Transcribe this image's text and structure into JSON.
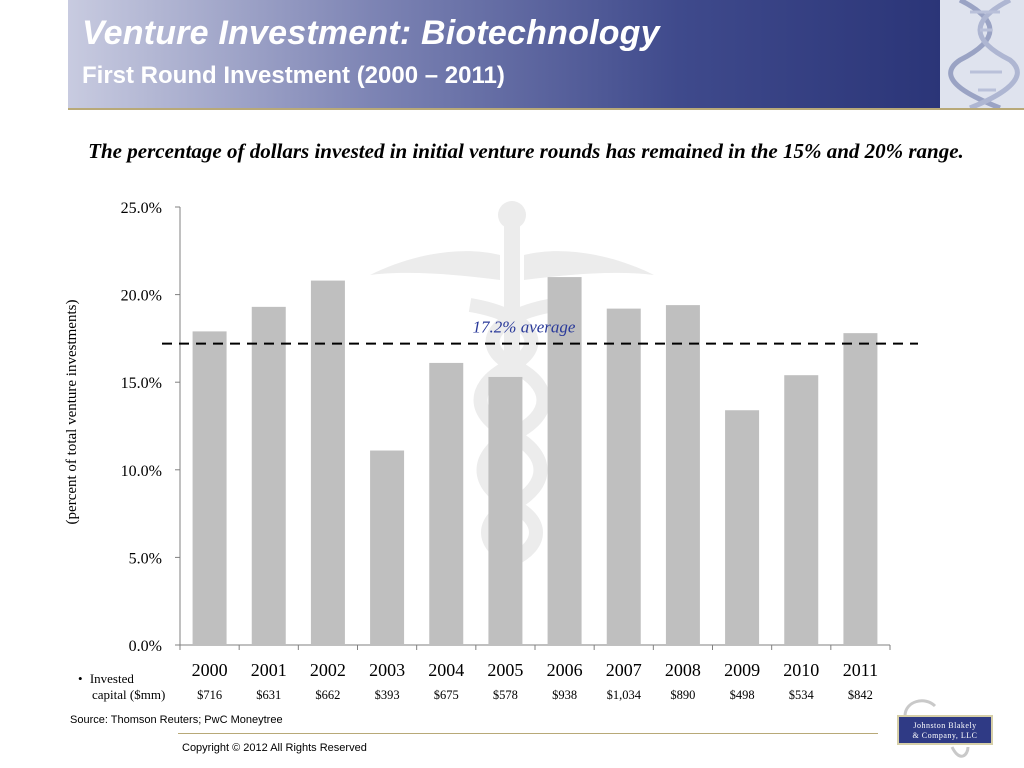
{
  "header": {
    "title": "Venture Investment: Biotechnology",
    "subtitle": "First Round Investment (2000 – 2011)"
  },
  "headline": "The percentage of dollars invested in initial venture rounds has remained in the 15% and 20% range.",
  "chart_data": {
    "type": "bar",
    "categories": [
      "2000",
      "2001",
      "2002",
      "2003",
      "2004",
      "2005",
      "2006",
      "2007",
      "2008",
      "2009",
      "2010",
      "2011"
    ],
    "values": [
      17.9,
      19.3,
      20.8,
      11.1,
      16.1,
      15.3,
      21.0,
      19.2,
      19.4,
      13.4,
      15.4,
      17.8
    ],
    "ylabel": "(percent of total venture investments)",
    "ylim": [
      0,
      25
    ],
    "yticks": [
      "0.0%",
      "5.0%",
      "10.0%",
      "15.0%",
      "20.0%",
      "25.0%"
    ],
    "average": {
      "value": 17.2,
      "label": "17.2% average"
    },
    "invested_capital": [
      "$716",
      "$631",
      "$662",
      "$393",
      "$675",
      "$578",
      "$938",
      "$1,034",
      "$890",
      "$498",
      "$534",
      "$842"
    ],
    "bar_color": "#bfbfbf"
  },
  "invested_label": {
    "bullet": "•",
    "line1": "Invested",
    "line2": "capital ($mm)"
  },
  "source": "Source: Thomson Reuters; PwC Moneytree",
  "copyright": "Copyright © 2012 All Rights Reserved",
  "logo": {
    "line1": "Johnston Blakely",
    "line2": "& Company, LLC"
  },
  "colors": {
    "average_text": "#2a3a9a",
    "header_dark": "#2b3578"
  }
}
